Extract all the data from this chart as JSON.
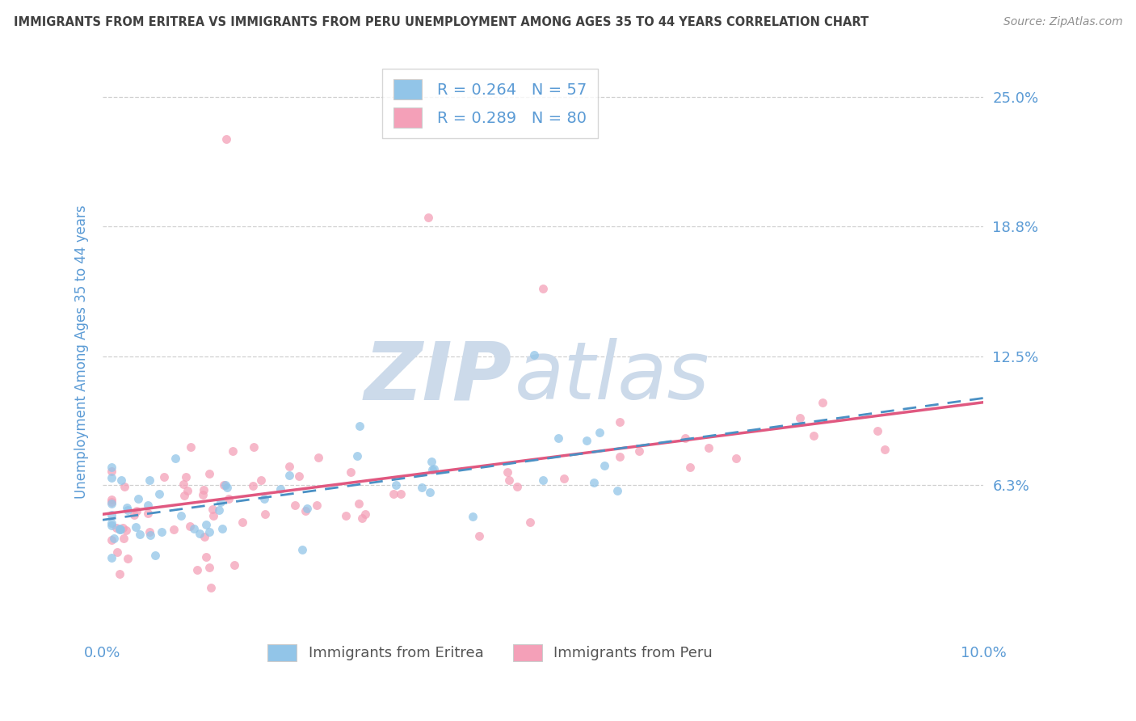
{
  "title": "IMMIGRANTS FROM ERITREA VS IMMIGRANTS FROM PERU UNEMPLOYMENT AMONG AGES 35 TO 44 YEARS CORRELATION CHART",
  "source": "Source: ZipAtlas.com",
  "R_eritrea": 0.264,
  "N_eritrea": 57,
  "R_peru": 0.289,
  "N_peru": 80,
  "legend_eritrea": "Immigrants from Eritrea",
  "legend_peru": "Immigrants from Peru",
  "color_eritrea": "#92c5e8",
  "color_peru": "#f4a0b8",
  "color_eritrea_line": "#4a90c4",
  "color_peru_line": "#e05880",
  "color_axis": "#5b9bd5",
  "color_title": "#404040",
  "color_source": "#909090",
  "color_grid": "#d0d0d0",
  "xmin": 0.0,
  "xmax": 0.1,
  "ymin": -0.01,
  "ymax": 0.265,
  "ytick_values": [
    0.063,
    0.125,
    0.188,
    0.25
  ],
  "ytick_labels": [
    "6.3%",
    "12.5%",
    "18.8%",
    "25.0%"
  ],
  "ylabel": "Unemployment Among Ages 35 to 44 years"
}
